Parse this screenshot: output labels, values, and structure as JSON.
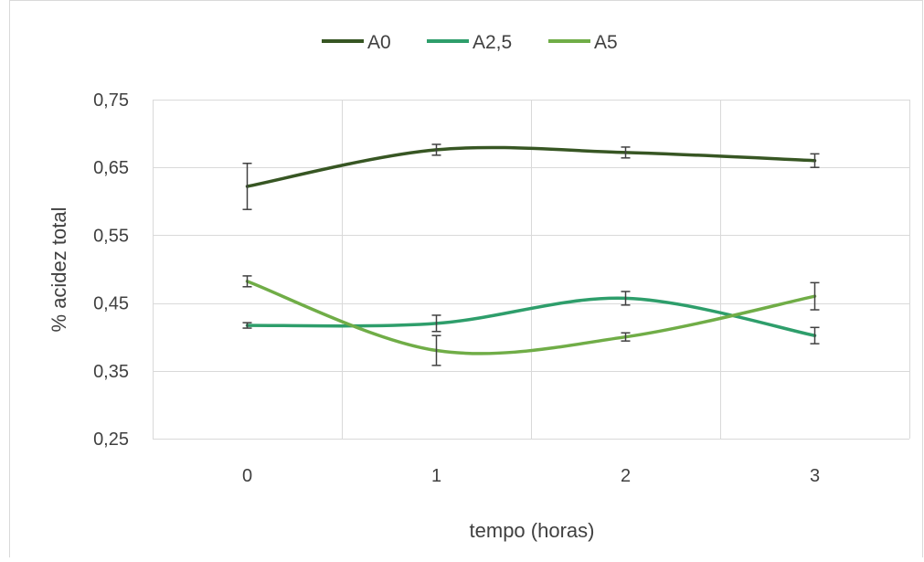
{
  "chart_data": {
    "type": "line",
    "title": "",
    "xlabel": "tempo (horas)",
    "ylabel": "% acidez total",
    "x": [
      0,
      1,
      2,
      3
    ],
    "x_tick_labels": [
      "0",
      "1",
      "2",
      "3"
    ],
    "xlim": [
      -0.5,
      3.5
    ],
    "ylim": [
      0.25,
      0.75
    ],
    "y_ticks": [
      0.25,
      0.35,
      0.45,
      0.55,
      0.65,
      0.75
    ],
    "y_tick_labels": [
      "0,25",
      "0,35",
      "0,45",
      "0,55",
      "0,65",
      "0,75"
    ],
    "grid": true,
    "smooth": true,
    "legend_position": "top",
    "series": [
      {
        "name": "A0",
        "color": "#375623",
        "values": [
          0.622,
          0.676,
          0.672,
          0.66
        ],
        "errors": [
          0.034,
          0.008,
          0.008,
          0.01
        ]
      },
      {
        "name": "A2,5",
        "color": "#2e9e6b",
        "values": [
          0.417,
          0.42,
          0.457,
          0.402
        ],
        "errors": [
          0.004,
          0.012,
          0.01,
          0.012
        ]
      },
      {
        "name": "A5",
        "color": "#70ad47",
        "values": [
          0.482,
          0.38,
          0.4,
          0.46
        ],
        "errors": [
          0.008,
          0.022,
          0.006,
          0.02
        ]
      }
    ]
  }
}
